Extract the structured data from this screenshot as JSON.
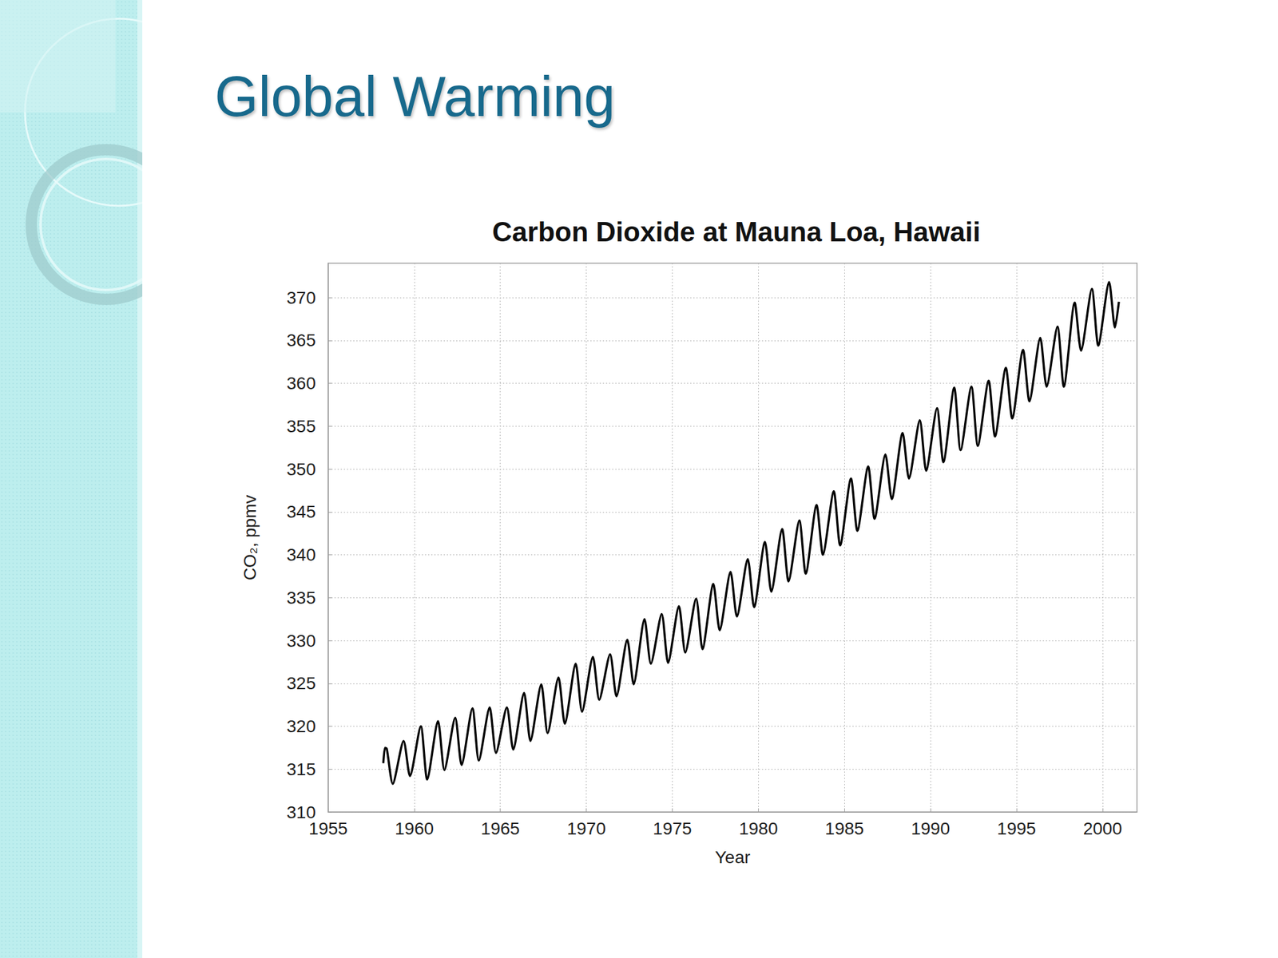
{
  "slide": {
    "title": "Global Warming"
  },
  "chart_data": {
    "type": "line",
    "title": "Carbon Dioxide at Mauna Loa, Hawaii",
    "x_label": "Year",
    "y_label": "CO₂, ppmv",
    "color": "#000000",
    "grid": true,
    "xlim": [
      1955,
      2002
    ],
    "xticks": [
      1955,
      1960,
      1965,
      1970,
      1975,
      1980,
      1985,
      1990,
      1995,
      2000
    ],
    "ylim": [
      310,
      374
    ],
    "yticks": [
      310,
      315,
      320,
      325,
      330,
      335,
      340,
      345,
      350,
      355,
      360,
      365,
      370
    ],
    "x": [
      1958.2,
      1958.3,
      1958.4,
      1958.75,
      1959.38,
      1959.75,
      1960.38,
      1960.75,
      1961.38,
      1961.75,
      1962.38,
      1962.75,
      1963.38,
      1963.75,
      1964.38,
      1964.75,
      1965.38,
      1965.75,
      1966.38,
      1966.75,
      1967.38,
      1967.75,
      1968.38,
      1968.75,
      1969.38,
      1969.75,
      1970.38,
      1970.75,
      1971.38,
      1971.75,
      1972.38,
      1972.75,
      1973.38,
      1973.75,
      1974.38,
      1974.75,
      1975.38,
      1975.75,
      1976.38,
      1976.75,
      1977.38,
      1977.75,
      1978.38,
      1978.75,
      1979.38,
      1979.75,
      1980.38,
      1980.75,
      1981.38,
      1981.75,
      1982.38,
      1982.75,
      1983.38,
      1983.75,
      1984.38,
      1984.75,
      1985.38,
      1985.75,
      1986.38,
      1986.75,
      1987.38,
      1987.75,
      1988.38,
      1988.75,
      1989.38,
      1989.75,
      1990.38,
      1990.75,
      1991.38,
      1991.75,
      1992.38,
      1992.75,
      1993.38,
      1993.75,
      1994.38,
      1994.75,
      1995.38,
      1995.75,
      1996.38,
      1996.75,
      1997.38,
      1997.75,
      1998.38,
      1998.75,
      1999.38,
      1999.75,
      2000.38,
      2000.72,
      2000.95
    ],
    "values": [
      315.7,
      317.5,
      317.4,
      313.3,
      318.3,
      314.2,
      320.0,
      313.8,
      320.6,
      314.9,
      321.0,
      315.5,
      322.1,
      316.0,
      322.2,
      316.9,
      322.2,
      317.3,
      323.9,
      318.3,
      324.9,
      319.2,
      325.7,
      320.3,
      327.3,
      321.7,
      328.1,
      323.1,
      328.4,
      323.5,
      330.1,
      324.9,
      332.5,
      327.3,
      333.1,
      327.4,
      334.0,
      328.6,
      334.9,
      329.0,
      336.6,
      331.2,
      338.0,
      332.8,
      339.5,
      333.9,
      341.5,
      335.7,
      343.0,
      336.9,
      344.0,
      337.8,
      345.8,
      340.0,
      347.4,
      341.1,
      348.9,
      342.8,
      350.3,
      344.2,
      351.7,
      346.5,
      354.2,
      348.9,
      355.7,
      349.8,
      357.1,
      350.8,
      359.5,
      352.2,
      359.6,
      352.7,
      360.3,
      353.8,
      361.8,
      355.9,
      363.9,
      357.9,
      365.3,
      359.6,
      366.6,
      359.6,
      369.4,
      363.8,
      371.0,
      364.4,
      371.8,
      366.5,
      369.5
    ]
  }
}
